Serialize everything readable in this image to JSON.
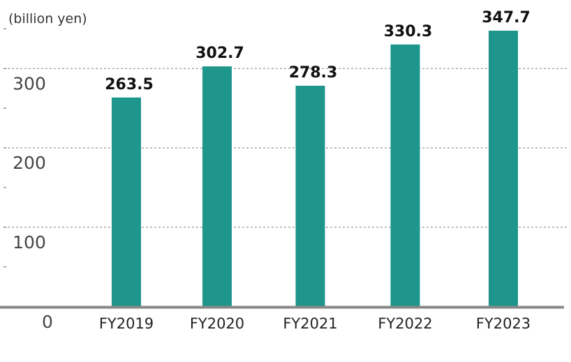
{
  "colors": {
    "bar": "#1e968c",
    "axis": "#888888",
    "grid": "#999999",
    "tick": "#777777"
  },
  "chart_data": {
    "type": "bar",
    "unit_label": "(billion yen)",
    "categories": [
      "FY2019",
      "FY2020",
      "FY2021",
      "FY2022",
      "FY2023"
    ],
    "values": [
      263.5,
      302.7,
      278.3,
      330.3,
      347.7
    ],
    "value_labels": [
      "263.5",
      "302.7",
      "278.3",
      "330.3",
      "347.7"
    ],
    "y_ticks": [
      0,
      100,
      200,
      300
    ],
    "y_tick_labels": [
      "0",
      "100",
      "200",
      "300"
    ],
    "ylim": [
      0,
      350
    ],
    "grid": true,
    "xlabel": "",
    "ylabel": ""
  }
}
